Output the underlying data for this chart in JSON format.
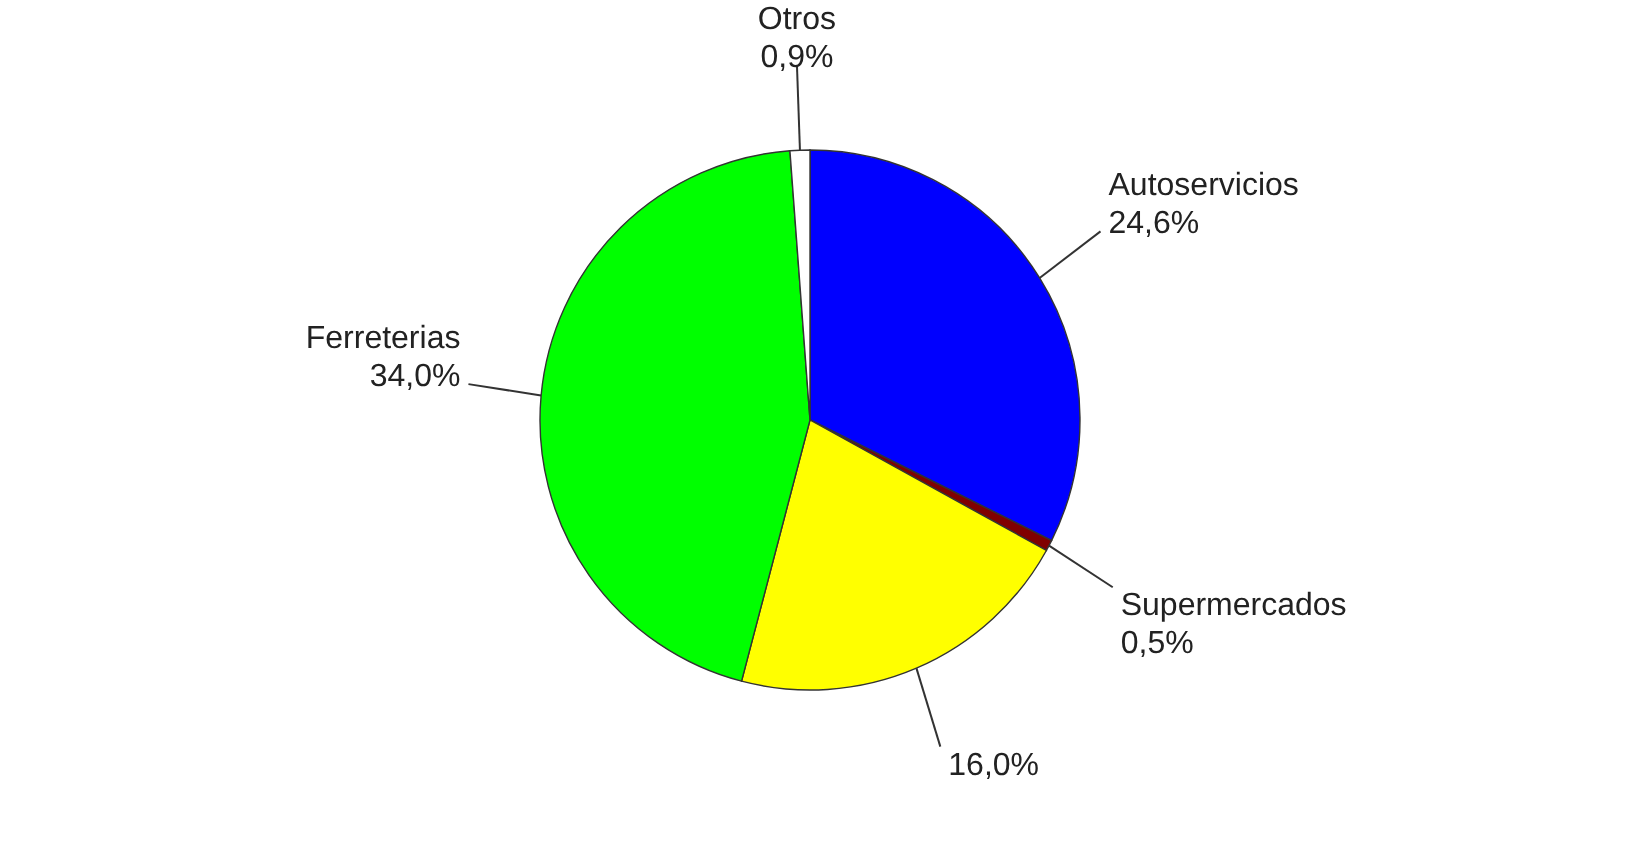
{
  "chart_data": {
    "type": "pie",
    "categories": [
      "Autoservicios",
      "Supermercados",
      null,
      "Ferreterias",
      "Otros"
    ],
    "values": [
      24.6,
      0.5,
      16.0,
      34.0,
      0.9
    ],
    "colors": [
      "#0000ff",
      "#800000",
      "#ffff00",
      "#00ff00",
      "#ffffff"
    ],
    "value_labels": [
      "24,6%",
      "0,5%",
      "16,0%",
      "34,0%",
      "0,9%"
    ]
  }
}
